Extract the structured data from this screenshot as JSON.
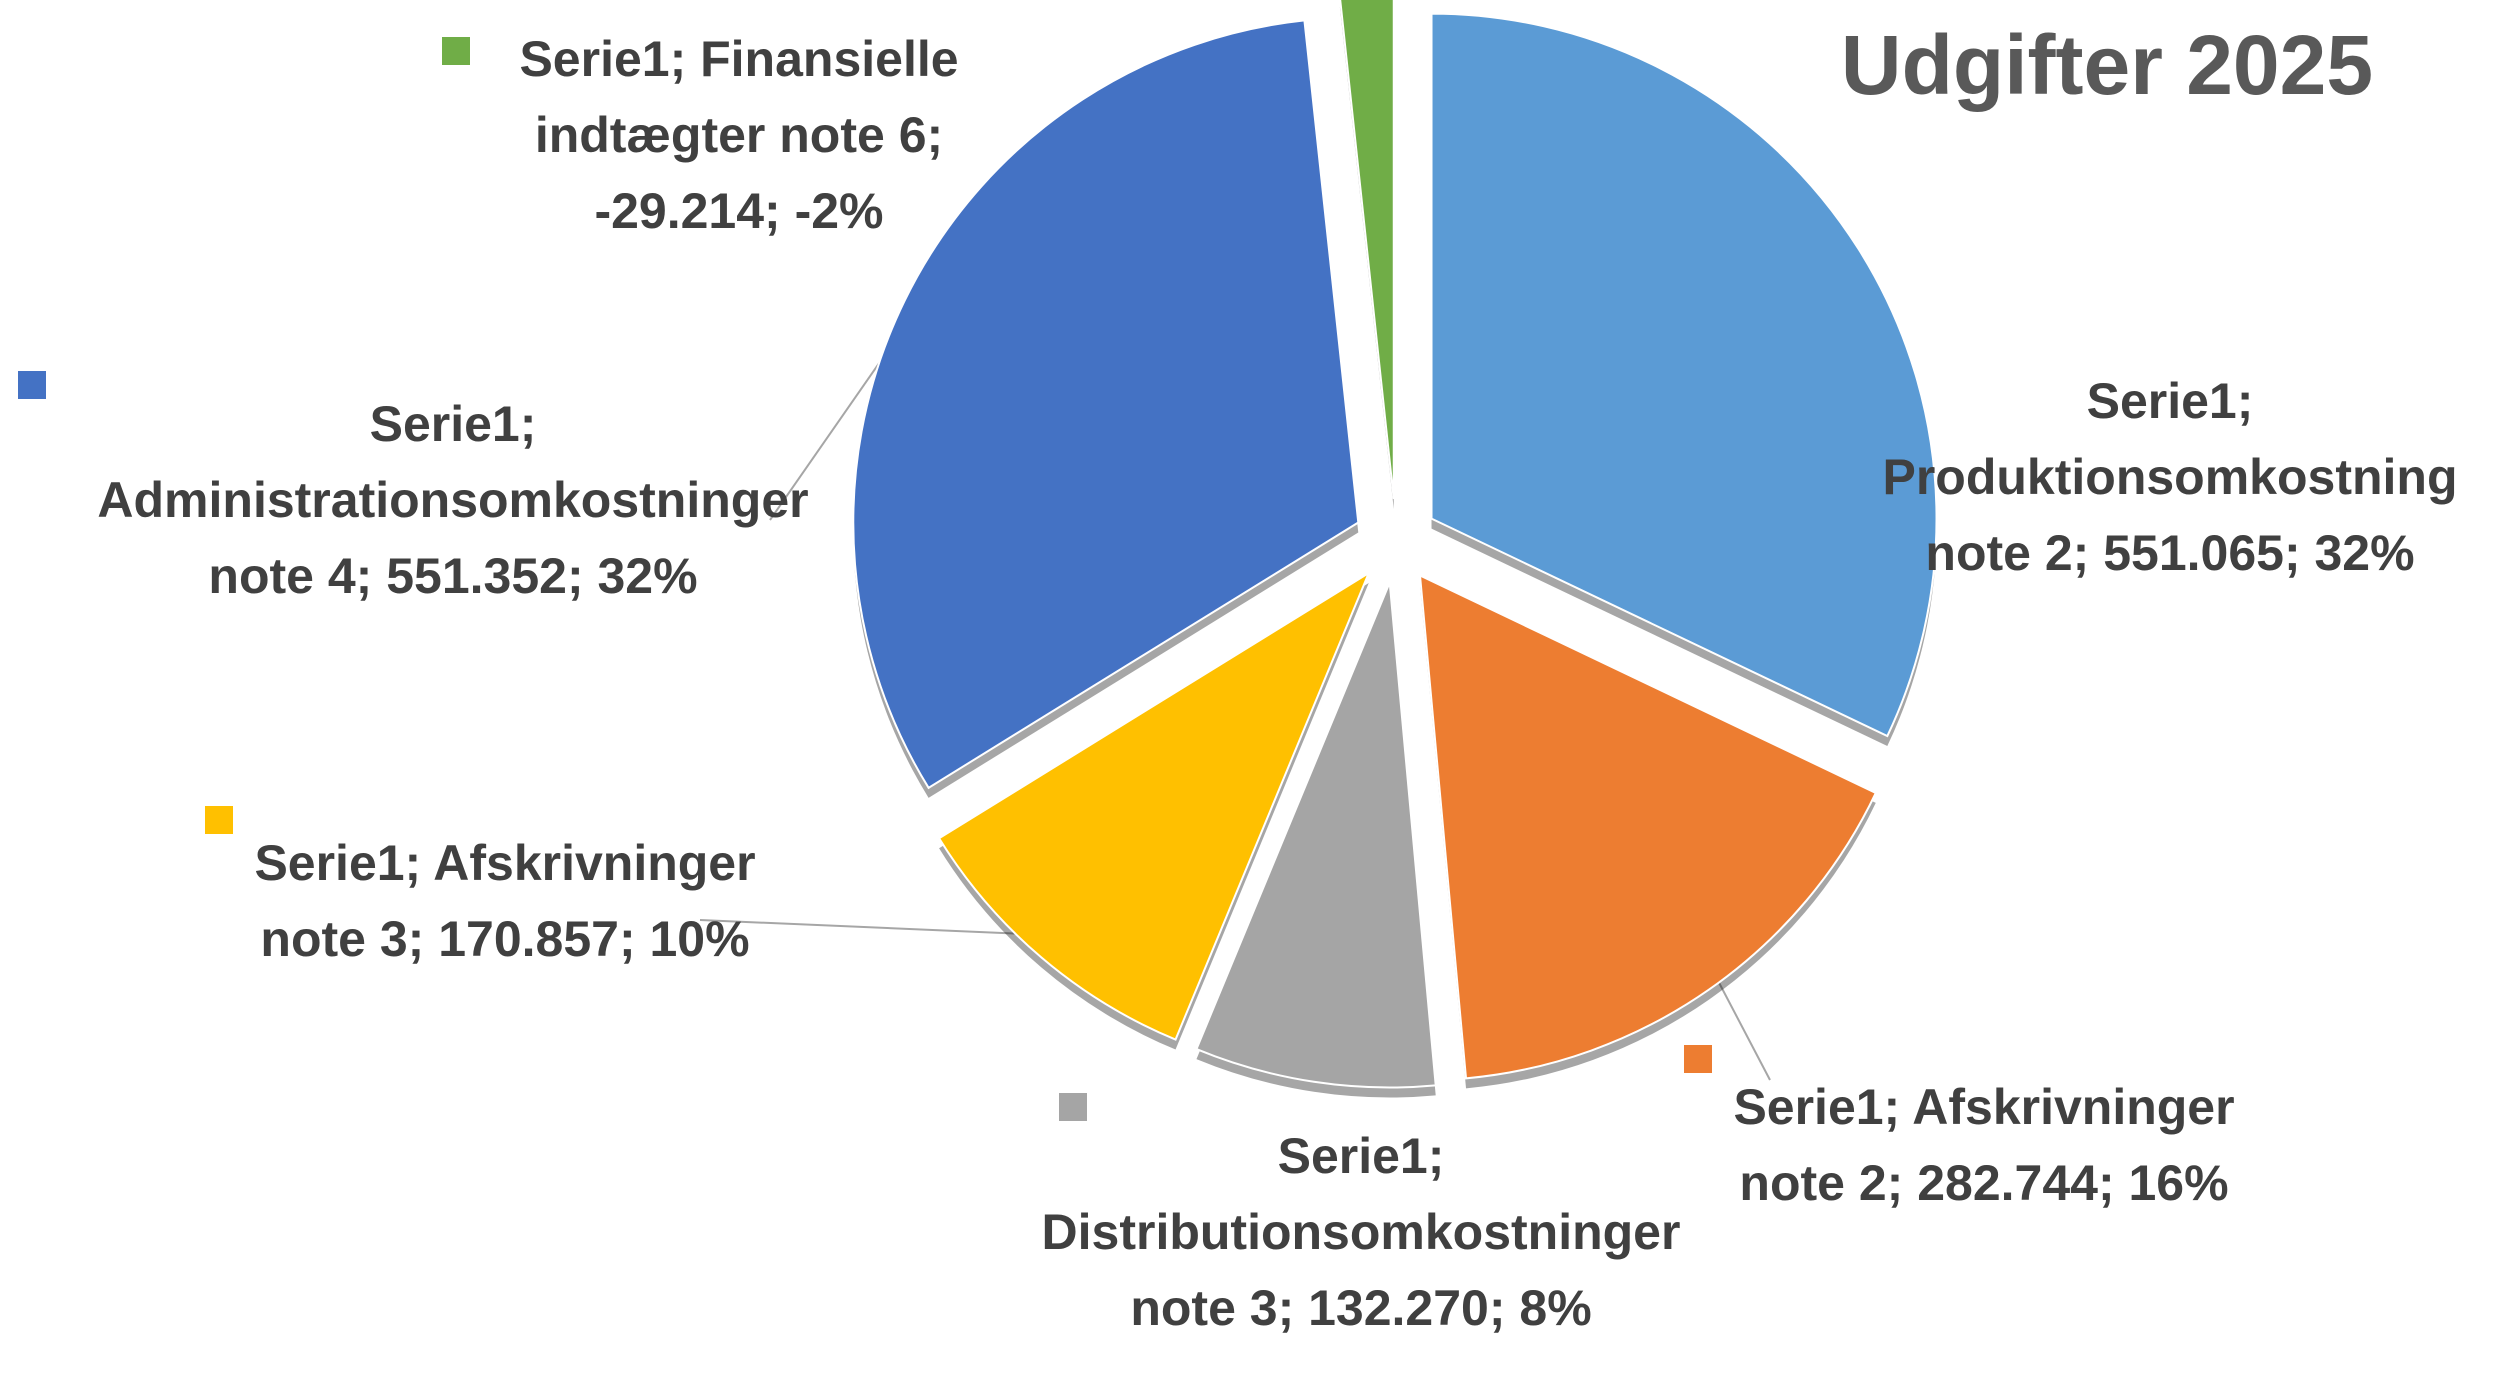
{
  "chart_data": {
    "type": "pie",
    "title": "Udgifter 2025",
    "values": [
      551065,
      282744,
      132270,
      170857,
      551352,
      -29214
    ],
    "value_labels": [
      "Serie1; Produktionsomkostning note 2; 551.065; 32%",
      "Serie1; Afskrivninger note 2; 282.744; 16%",
      "Serie1; Distributionsomkostninger note 3; 132.270; 8%",
      "Serie1; Afskrivninger note 3; 170.857; 10%",
      "Serie1; Administrationsomkostninger note 4; 551.352; 32%",
      "Serie1; Finansielle indtægter note 6; -29.214; -2%"
    ],
    "colors": [
      "#5b9bd5",
      "#ed7d31",
      "#a5a5a5",
      "#ffc000",
      "#4472c4",
      "#70ad47"
    ]
  }
}
